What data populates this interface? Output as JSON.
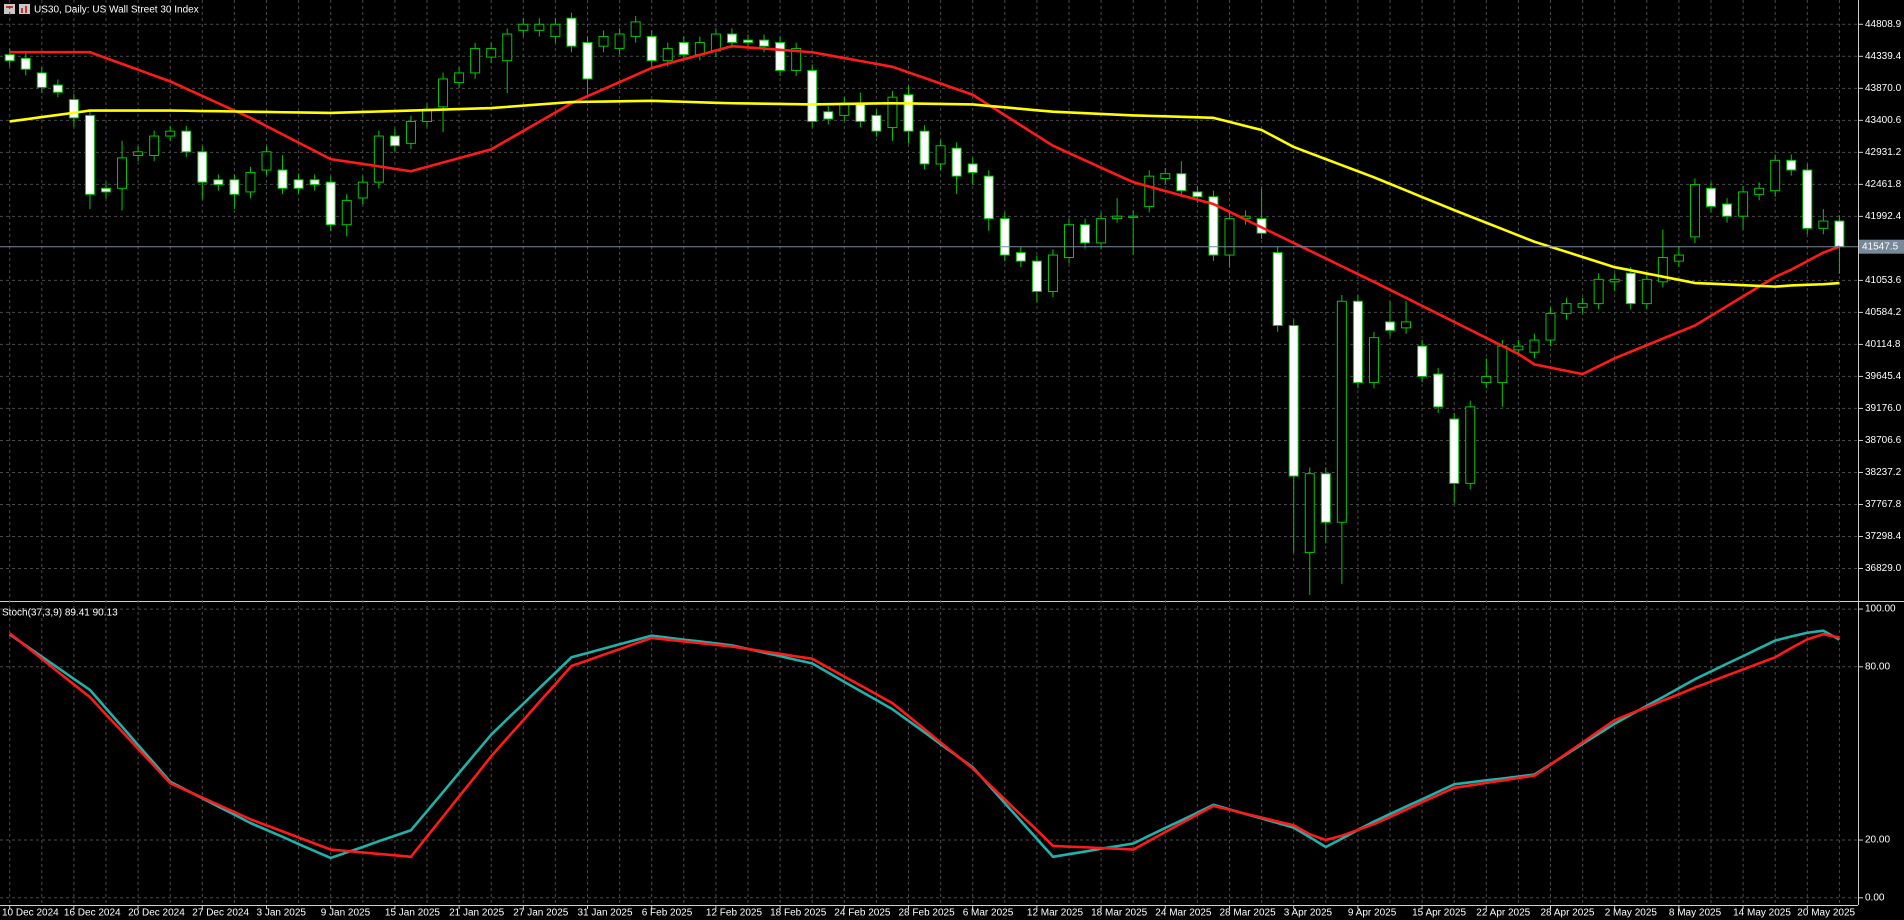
{
  "chart_data": [
    {
      "type": "candlestick",
      "title": "US30, Daily:  US Wall Street 30 Index",
      "categories": [
        "10 Dec 2024",
        null,
        null,
        null,
        "16 Dec 2024",
        null,
        null,
        null,
        "20 Dec 2024",
        null,
        null,
        null,
        "27 Dec 2024",
        null,
        null,
        null,
        "3 Jan 2025",
        null,
        null,
        null,
        "9 Jan 2025",
        null,
        null,
        null,
        "15 Jan 2025",
        null,
        null,
        null,
        "21 Jan 2025",
        null,
        null,
        null,
        "27 Jan 2025",
        null,
        null,
        null,
        "31 Jan 2025",
        null,
        null,
        null,
        "6 Feb 2025",
        null,
        null,
        null,
        "12 Feb 2025",
        null,
        null,
        null,
        "18 Feb 2025",
        null,
        null,
        null,
        "24 Feb 2025",
        null,
        null,
        null,
        "28 Feb 2025",
        null,
        null,
        null,
        "6 Mar 2025",
        null,
        null,
        null,
        "12 Mar 2025",
        null,
        null,
        null,
        "18 Mar 2025",
        null,
        null,
        null,
        "24 Mar 2025",
        null,
        null,
        null,
        "28 Mar 2025",
        null,
        null,
        null,
        "3 Apr 2025",
        null,
        null,
        null,
        "9 Apr 2025",
        null,
        null,
        null,
        "15 Apr 2025",
        null,
        null,
        null,
        "22 Apr 2025",
        null,
        null,
        null,
        "28 Apr 2025",
        null,
        null,
        null,
        "2 May 2025",
        null,
        null,
        null,
        "8 May 2025",
        null,
        null,
        null,
        "14 May 2025",
        null,
        null,
        null,
        "20 May 2025",
        null,
        null
      ],
      "open": [
        44364,
        44310,
        44096,
        43918,
        43705,
        43473,
        42404,
        42404,
        42885,
        42885,
        43170,
        43242,
        42939,
        42529,
        42529,
        42351,
        42672,
        42672,
        42529,
        42529,
        42494,
        41870,
        42262,
        42494,
        43170,
        43063,
        43384,
        43598,
        43954,
        44096,
        44328,
        44275,
        44720,
        44720,
        44631,
        44898,
        44542,
        44488,
        44453,
        44631,
        44631,
        44275,
        44542,
        44364,
        44417,
        44666,
        44577,
        44577,
        44542,
        44132,
        44132,
        43527,
        43473,
        43651,
        43473,
        43295,
        43776,
        43242,
        42761,
        42992,
        42761,
        42582,
        41959,
        41461,
        41336,
        40891,
        41389,
        41870,
        41603,
        41959,
        41977,
        42138,
        42547,
        42618,
        42351,
        42280,
        41425,
        41959,
        41959,
        41461,
        40392,
        37062,
        38219,
        37507,
        40748,
        39555,
        40445,
        40357,
        40090,
        39680,
        39021,
        38077,
        39555,
        39555,
        40036,
        40000,
        40179,
        40570,
        40659,
        40713,
        41033,
        41158,
        40713,
        41033,
        41336,
        41692,
        42404,
        42173,
        41995,
        42315,
        42369,
        42814,
        42672,
        41817,
        41924
      ],
      "high": [
        44450,
        44400,
        44180,
        44000,
        43790,
        43560,
        42490,
        43100,
        43020,
        43250,
        43320,
        43320,
        43020,
        42610,
        42610,
        42720,
        43020,
        42890,
        42620,
        42610,
        42580,
        42320,
        42580,
        43250,
        43280,
        43470,
        43650,
        44100,
        44180,
        44540,
        44540,
        44750,
        44900,
        44900,
        44900,
        44980,
        44630,
        44720,
        44750,
        44930,
        44720,
        44540,
        44630,
        44630,
        44750,
        44750,
        44660,
        44660,
        44630,
        44540,
        44220,
        43610,
        43740,
        43810,
        43560,
        43830,
        43900,
        43330,
        43110,
        43080,
        42850,
        42670,
        42050,
        41550,
        41420,
        41510,
        41960,
        41960,
        42050,
        42260,
        42080,
        42670,
        42700,
        42800,
        42440,
        42370,
        42050,
        42080,
        42400,
        41550,
        40480,
        38310,
        38310,
        40840,
        40840,
        40300,
        40750,
        40750,
        40180,
        39770,
        39110,
        39290,
        39910,
        40180,
        40180,
        40270,
        40660,
        40800,
        40800,
        41160,
        41160,
        41250,
        41160,
        41800,
        41550,
        42550,
        42490,
        42260,
        42440,
        42490,
        42900,
        42900,
        42760,
        42100,
        42010
      ],
      "low": [
        44190,
        44060,
        43800,
        43740,
        43300,
        42100,
        42260,
        42080,
        42800,
        42800,
        43100,
        42860,
        42240,
        42370,
        42100,
        42260,
        42600,
        42320,
        42320,
        42370,
        41780,
        41700,
        42170,
        42400,
        42940,
        42980,
        43300,
        43230,
        43870,
        44010,
        44240,
        43800,
        44630,
        44630,
        44540,
        44400,
        43780,
        44400,
        44370,
        44540,
        44190,
        44190,
        44280,
        44280,
        44330,
        44460,
        44460,
        44400,
        44050,
        44050,
        43300,
        43340,
        43390,
        43300,
        43160,
        43100,
        43060,
        42680,
        42670,
        42320,
        42460,
        41780,
        41340,
        41250,
        40730,
        40810,
        41300,
        41520,
        41520,
        41900,
        41430,
        42050,
        42460,
        42280,
        42190,
        41340,
        41240,
        41870,
        41660,
        40300,
        37060,
        36440,
        37200,
        36600,
        39470,
        39470,
        40240,
        40270,
        39560,
        39110,
        37780,
        37990,
        39470,
        39200,
        39950,
        39910,
        40090,
        40480,
        40570,
        40630,
        40900,
        40630,
        40630,
        40950,
        41250,
        41600,
        42050,
        41900,
        41800,
        42230,
        42280,
        42590,
        41730,
        41730,
        41150
      ],
      "close": [
        44275,
        44150,
        43883,
        43812,
        43437,
        42315,
        42351,
        42850,
        42939,
        43170,
        43242,
        42939,
        42494,
        42458,
        42315,
        42636,
        42939,
        42404,
        42404,
        42458,
        41870,
        42226,
        42494,
        43170,
        43028,
        43384,
        43562,
        44007,
        44096,
        44453,
        44453,
        44666,
        44809,
        44809,
        44809,
        44488,
        44007,
        44631,
        44666,
        44844,
        44275,
        44453,
        44364,
        44542,
        44666,
        44542,
        44542,
        44488,
        44132,
        44453,
        43384,
        43420,
        43651,
        43384,
        43242,
        43740,
        43242,
        42761,
        43028,
        42582,
        42636,
        41959,
        41425,
        41336,
        40891,
        41425,
        41870,
        41603,
        41959,
        41995,
        41995,
        42582,
        42618,
        42369,
        42280,
        41425,
        41959,
        41995,
        41745,
        40392,
        38184,
        38219,
        37507,
        40748,
        39555,
        40214,
        40321,
        40445,
        39645,
        39199,
        38077,
        39199,
        39645,
        40090,
        40090,
        40179,
        40570,
        40713,
        40713,
        41069,
        41069,
        40713,
        41069,
        41389,
        41425,
        42458,
        42138,
        41995,
        42351,
        42404,
        42814,
        42672,
        41817,
        41924,
        41547.5
      ],
      "up_color": "#00c800",
      "down_color": "#ffffff",
      "series": [
        {
          "color": "#ff1a1a",
          "values": [
            44400,
            44400,
            44400,
            44400,
            44400,
            44400,
            44314,
            44228,
            44143,
            44057,
            43972,
            43865,
            43758,
            43651,
            43544,
            43438,
            43316,
            43195,
            43074,
            42953,
            42832,
            42796,
            42761,
            42725,
            42689,
            42654,
            42718,
            42782,
            42846,
            42910,
            42974,
            43110,
            43245,
            43380,
            43516,
            43651,
            43755,
            43858,
            43961,
            44064,
            44168,
            44232,
            44296,
            44360,
            44424,
            44488,
            44470,
            44453,
            44435,
            44417,
            44399,
            44356,
            44314,
            44271,
            44228,
            44185,
            44104,
            44022,
            43940,
            43858,
            43776,
            43626,
            43477,
            43327,
            43177,
            43028,
            42921,
            42814,
            42707,
            42600,
            42494,
            42429,
            42365,
            42301,
            42237,
            42173,
            42059,
            41945,
            41831,
            41717,
            41603,
            41489,
            41375,
            41261,
            41147,
            41033,
            40915,
            40798,
            40680,
            40563,
            40445,
            40328,
            40210,
            40093,
            39975,
            39822,
            39774,
            39727,
            39679,
            39795,
            39911,
            40007,
            40103,
            40200,
            40296,
            40392,
            40534,
            40677,
            40819,
            40962,
            41105,
            41211,
            41336,
            41461,
            41550
          ]
        },
        {
          "color": "#ffff00",
          "values": [
            43384,
            43416,
            43448,
            43480,
            43512,
            43544,
            43544,
            43544,
            43544,
            43544,
            43544,
            43541,
            43537,
            43534,
            43530,
            43527,
            43523,
            43519,
            43516,
            43512,
            43509,
            43516,
            43523,
            43530,
            43537,
            43544,
            43551,
            43559,
            43566,
            43573,
            43580,
            43598,
            43616,
            43633,
            43651,
            43669,
            43673,
            43676,
            43680,
            43683,
            43687,
            43680,
            43673,
            43665,
            43658,
            43651,
            43648,
            43644,
            43641,
            43637,
            43633,
            43637,
            43641,
            43644,
            43648,
            43651,
            43648,
            43644,
            43641,
            43637,
            43633,
            43612,
            43591,
            43569,
            43548,
            43527,
            43516,
            43505,
            43494,
            43484,
            43473,
            43466,
            43459,
            43452,
            43445,
            43437,
            43378,
            43318,
            43259,
            43135,
            43010,
            42921,
            42832,
            42743,
            42654,
            42565,
            42469,
            42373,
            42276,
            42180,
            42084,
            41991,
            41899,
            41806,
            41713,
            41620,
            41546,
            41471,
            41397,
            41322,
            41247,
            41201,
            41154,
            41108,
            41062,
            41015,
            41005,
            40994,
            40983,
            40973,
            40962,
            40980,
            40989,
            40997,
            41015
          ]
        }
      ],
      "current_price": 41547.5,
      "ylim": [
        36367,
        45165
      ],
      "yticks": [
        44808.9,
        44339.4,
        {
          "value": 43870.0,
          "label": "43870.0"
        },
        43400.6,
        42931.2,
        42461.8,
        41992.4,
        41053.6,
        40584.2,
        40114.8,
        39645.4,
        {
          "value": 39176.0,
          "label": "39176.0"
        },
        38706.6,
        38237.2,
        37767.8,
        37298.4,
        {
          "value": 36829.0,
          "label": "36829.0"
        }
      ],
      "grid": true
    },
    {
      "type": "line",
      "title": "Stoch(37,3,9) 89.41 90.13",
      "series": [
        {
          "color": "#20b2aa",
          "values": [
            91.2,
            87.4,
            83.5,
            79.7,
            75.8,
            72.0,
            65.6,
            59.3,
            52.9,
            46.6,
            40.2,
            37.3,
            34.5,
            31.6,
            28.8,
            25.9,
            23.5,
            21.1,
            18.6,
            16.2,
            13.8,
            15.7,
            17.6,
            19.6,
            21.5,
            23.4,
            30.0,
            36.6,
            43.3,
            49.9,
            56.5,
            61.9,
            67.2,
            72.6,
            77.9,
            83.3,
            84.8,
            86.3,
            87.8,
            89.3,
            90.8,
            90.1,
            89.4,
            88.8,
            88.1,
            87.4,
            86.2,
            84.9,
            83.7,
            82.4,
            81.2,
            78.0,
            74.8,
            71.6,
            68.5,
            65.3,
            61.3,
            57.3,
            53.2,
            49.2,
            45.2,
            39.0,
            32.8,
            26.6,
            20.4,
            14.2,
            15.1,
            16.0,
            17.0,
            17.9,
            18.8,
            21.5,
            24.2,
            26.8,
            29.5,
            32.2,
            30.6,
            29.0,
            27.5,
            25.9,
            24.3,
            21.0,
            17.6,
            20.5,
            23.5,
            26.4,
            29.0,
            31.6,
            34.1,
            36.7,
            39.3,
            40.0,
            40.7,
            41.3,
            42.0,
            42.7,
            46.2,
            49.7,
            53.3,
            56.8,
            60.3,
            63.4,
            66.5,
            69.5,
            72.6,
            75.7,
            78.4,
            81.1,
            83.7,
            86.4,
            89.1,
            90.5,
            91.8,
            92.5,
            89.41
          ]
        },
        {
          "color": "#ff1a1a",
          "values": [
            91.6,
            87.2,
            82.8,
            78.3,
            73.9,
            69.5,
            63.5,
            57.6,
            51.6,
            45.7,
            39.7,
            37.2,
            34.7,
            32.2,
            29.7,
            27.2,
            25.1,
            23.0,
            20.9,
            18.8,
            16.7,
            16.2,
            15.7,
            15.2,
            14.7,
            14.2,
            21.2,
            28.1,
            35.1,
            42.0,
            49.0,
            55.3,
            61.5,
            67.8,
            74.0,
            80.3,
            82.2,
            84.2,
            86.1,
            88.1,
            90.0,
            89.4,
            88.8,
            88.2,
            87.6,
            87.0,
            86.2,
            85.3,
            84.5,
            83.6,
            82.8,
            79.7,
            76.6,
            73.6,
            70.5,
            67.4,
            62.9,
            58.4,
            53.8,
            49.3,
            44.8,
            39.4,
            34.1,
            28.7,
            23.4,
            18.0,
            17.7,
            17.5,
            17.2,
            17.0,
            16.7,
            19.7,
            22.8,
            25.8,
            28.8,
            31.8,
            30.5,
            29.1,
            27.8,
            26.4,
            25.1,
            22.0,
            20.0,
            21.5,
            23.5,
            25.5,
            28.0,
            30.5,
            33.1,
            35.6,
            38.1,
            38.9,
            39.8,
            40.6,
            41.5,
            42.3,
            46.1,
            50.0,
            53.8,
            57.7,
            61.5,
            63.8,
            66.0,
            68.3,
            70.5,
            72.8,
            74.9,
            77.0,
            79.1,
            81.2,
            83.3,
            86.5,
            89.5,
            91.3,
            90.13
          ]
        }
      ],
      "ylim": [
        -2.5,
        102.1
      ],
      "yticks": [
        {
          "value": 100,
          "label": "100.00"
        },
        {
          "value": 80,
          "label": "80.00"
        },
        {
          "value": 20,
          "label": "20.00"
        },
        {
          "value": 0,
          "label": "0.00"
        }
      ],
      "grid": true
    }
  ]
}
